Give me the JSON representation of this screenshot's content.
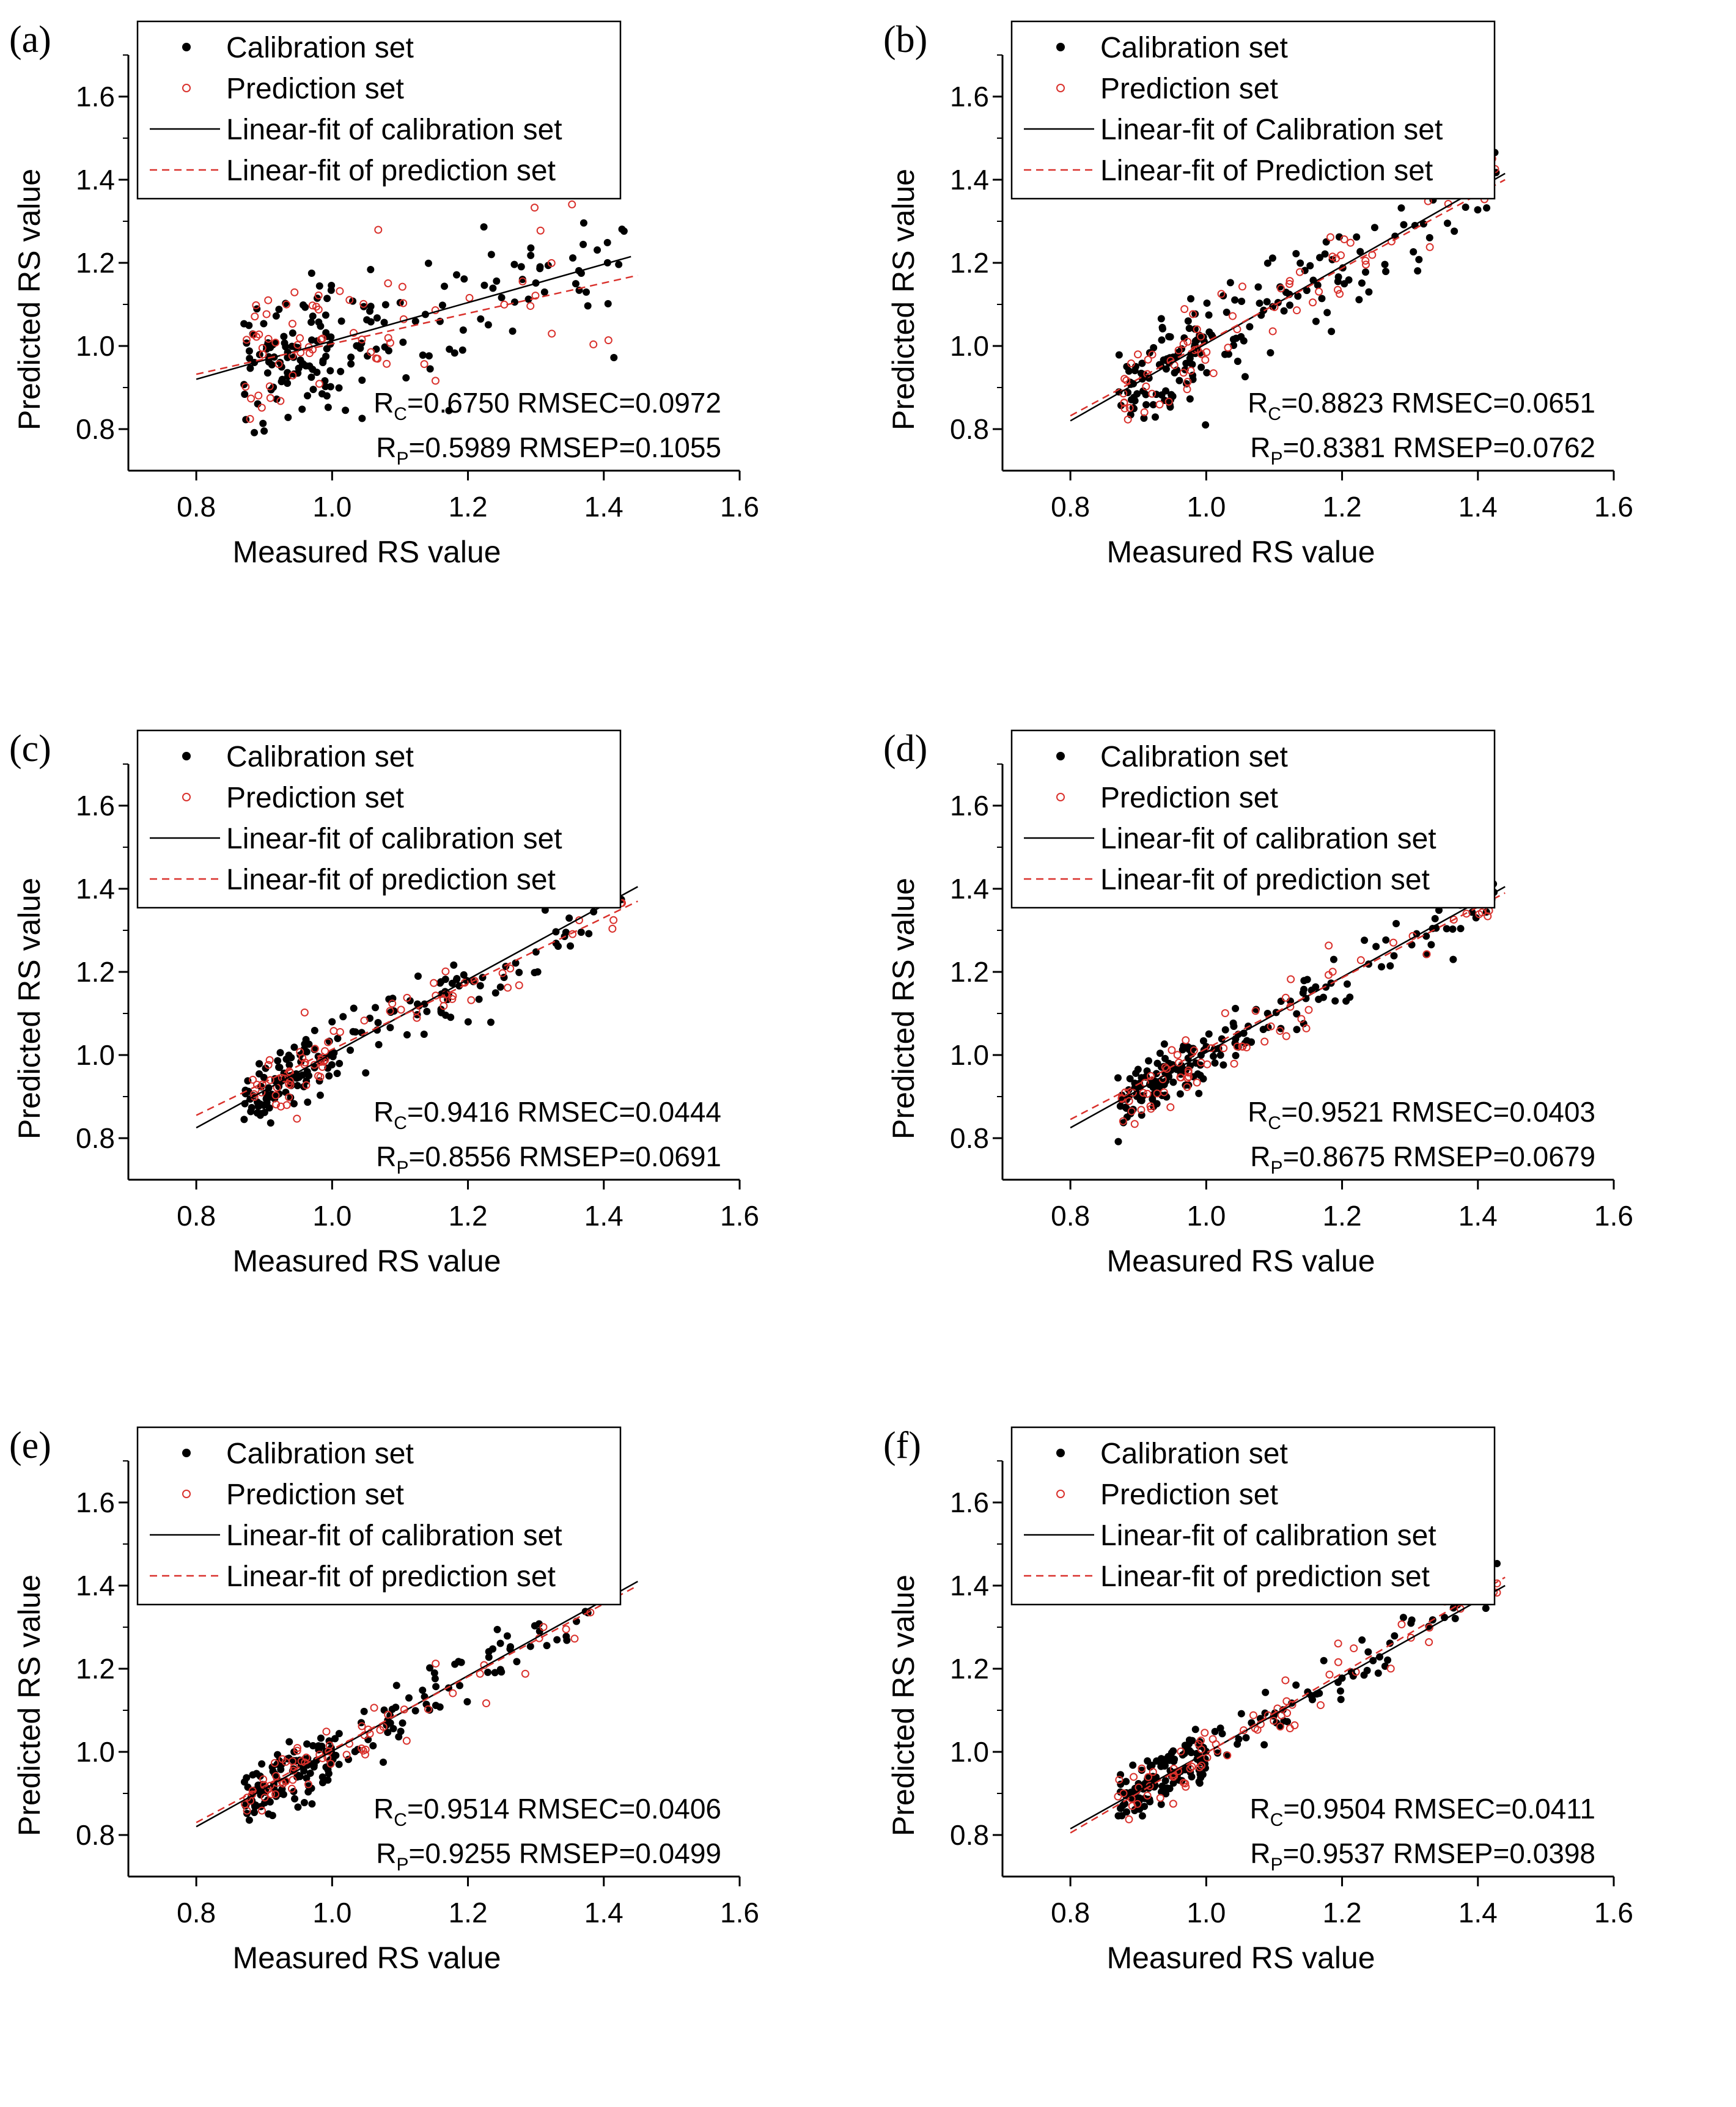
{
  "figure": {
    "colors": {
      "calibration": "#000000",
      "prediction": "#d9302b",
      "axis": "#000000"
    },
    "charts": [
      {
        "id": "a"
      },
      {
        "id": "b"
      },
      {
        "id": "c"
      },
      {
        "id": "d"
      },
      {
        "id": "e"
      },
      {
        "id": "f"
      }
    ]
  },
  "chart_data": [
    {
      "type": "scatter",
      "panel_label": "(a)",
      "xlabel": "Measured RS value",
      "ylabel": "Predicted RS value",
      "xlim": [
        0.7,
        1.6
      ],
      "ylim": [
        0.7,
        1.7
      ],
      "xticks": [
        "0.8",
        "1.0",
        "1.2",
        "1.4",
        "1.6"
      ],
      "yticks": [
        "0.8",
        "1.0",
        "1.2",
        "1.4",
        "1.6"
      ],
      "legend": [
        "Calibration set",
        "Prediction set",
        "Linear-fit of calibration set",
        "Linear-fit of prediction set"
      ],
      "legend_position": "top-left",
      "stats": {
        "rc_sub": "C",
        "rc": "=0.6750 RMSEC=0.0972",
        "rp_sub": "P",
        "rp": "=0.5989 RMSEP=0.1055"
      },
      "fit_calibration": {
        "x": [
          0.8,
          1.44
        ],
        "y": [
          0.92,
          1.215
        ]
      },
      "fit_prediction": {
        "x": [
          0.8,
          1.45
        ],
        "y": [
          0.932,
          1.17
        ]
      },
      "scatter_model": {
        "slope": 0.46,
        "intercept": 0.55,
        "spread": 0.08
      }
    },
    {
      "type": "scatter",
      "panel_label": "(b)",
      "xlabel": "Measured RS value",
      "ylabel": "Predicted RS value",
      "xlim": [
        0.7,
        1.6
      ],
      "ylim": [
        0.7,
        1.7
      ],
      "xticks": [
        "0.8",
        "1.0",
        "1.2",
        "1.4",
        "1.6"
      ],
      "yticks": [
        "0.8",
        "1.0",
        "1.2",
        "1.4",
        "1.6"
      ],
      "legend": [
        "Calibration set",
        "Prediction set",
        "Linear-fit of Calibration set",
        "Linear-fit of Prediction set"
      ],
      "legend_position": "top-left",
      "stats": {
        "rc_sub": "C",
        "rc": "=0.8823 RMSEC=0.0651",
        "rp_sub": "P",
        "rp": "=0.8381 RMSEP=0.0762"
      },
      "fit_calibration": {
        "x": [
          0.8,
          1.44
        ],
        "y": [
          0.82,
          1.415
        ]
      },
      "fit_prediction": {
        "x": [
          0.8,
          1.44
        ],
        "y": [
          0.832,
          1.4
        ]
      },
      "scatter_model": {
        "slope": 0.93,
        "intercept": 0.076,
        "spread": 0.055
      }
    },
    {
      "type": "scatter",
      "panel_label": "(c)",
      "xlabel": "Measured RS value",
      "ylabel": "Predicted RS value",
      "xlim": [
        0.7,
        1.6
      ],
      "ylim": [
        0.7,
        1.7
      ],
      "xticks": [
        "0.8",
        "1.0",
        "1.2",
        "1.4",
        "1.6"
      ],
      "yticks": [
        "0.8",
        "1.0",
        "1.2",
        "1.4",
        "1.6"
      ],
      "legend": [
        "Calibration set",
        "Prediction set",
        "Linear-fit of calibration set",
        "Linear-fit of prediction set"
      ],
      "legend_position": "top-left",
      "stats": {
        "rc_sub": "C",
        "rc": "=0.9416 RMSEC=0.0444",
        "rp_sub": "P",
        "rp": "=0.8556 RMSEP=0.0691"
      },
      "fit_calibration": {
        "x": [
          0.8,
          1.45
        ],
        "y": [
          0.825,
          1.405
        ]
      },
      "fit_prediction": {
        "x": [
          0.8,
          1.45
        ],
        "y": [
          0.855,
          1.37
        ]
      },
      "scatter_model": {
        "slope": 0.89,
        "intercept": 0.11,
        "spread": 0.04
      }
    },
    {
      "type": "scatter",
      "panel_label": "(d)",
      "xlabel": "Measured RS value",
      "ylabel": "Predicted RS value",
      "xlim": [
        0.7,
        1.6
      ],
      "ylim": [
        0.7,
        1.7
      ],
      "xticks": [
        "0.8",
        "1.0",
        "1.2",
        "1.4",
        "1.6"
      ],
      "yticks": [
        "0.8",
        "1.0",
        "1.2",
        "1.4",
        "1.6"
      ],
      "legend": [
        "Calibration set",
        "Prediction set",
        "Linear-fit of calibration set",
        "Linear-fit of prediction set"
      ],
      "legend_position": "top-left",
      "stats": {
        "rc_sub": "C",
        "rc": "=0.9521 RMSEC=0.0403",
        "rp_sub": "P",
        "rp": "=0.8675 RMSEP=0.0679"
      },
      "fit_calibration": {
        "x": [
          0.8,
          1.44
        ],
        "y": [
          0.825,
          1.405
        ]
      },
      "fit_prediction": {
        "x": [
          0.8,
          1.44
        ],
        "y": [
          0.845,
          1.39
        ]
      },
      "scatter_model": {
        "slope": 0.9,
        "intercept": 0.1,
        "spread": 0.038
      }
    },
    {
      "type": "scatter",
      "panel_label": "(e)",
      "xlabel": "Measured RS value",
      "ylabel": "Predicted RS value",
      "xlim": [
        0.7,
        1.6
      ],
      "ylim": [
        0.7,
        1.7
      ],
      "xticks": [
        "0.8",
        "1.0",
        "1.2",
        "1.4",
        "1.6"
      ],
      "yticks": [
        "0.8",
        "1.0",
        "1.2",
        "1.4",
        "1.6"
      ],
      "legend": [
        "Calibration set",
        "Prediction set",
        "Linear-fit of calibration set",
        "Linear-fit of prediction set"
      ],
      "legend_position": "top-left",
      "stats": {
        "rc_sub": "C",
        "rc": "=0.9514 RMSEC=0.0406",
        "rp_sub": "P",
        "rp": "=0.9255 RMSEP=0.0499"
      },
      "fit_calibration": {
        "x": [
          0.8,
          1.45
        ],
        "y": [
          0.82,
          1.41
        ]
      },
      "fit_prediction": {
        "x": [
          0.8,
          1.45
        ],
        "y": [
          0.83,
          1.4
        ]
      },
      "scatter_model": {
        "slope": 0.91,
        "intercept": 0.09,
        "spread": 0.035
      }
    },
    {
      "type": "scatter",
      "panel_label": "(f)",
      "xlabel": "Measured RS value",
      "ylabel": "Predicted RS value",
      "xlim": [
        0.7,
        1.6
      ],
      "ylim": [
        0.7,
        1.7
      ],
      "xticks": [
        "0.8",
        "1.0",
        "1.2",
        "1.4",
        "1.6"
      ],
      "yticks": [
        "0.8",
        "1.0",
        "1.2",
        "1.4",
        "1.6"
      ],
      "legend": [
        "Calibration set",
        "Prediction set",
        "Linear-fit of calibration set",
        "Linear-fit of prediction set"
      ],
      "legend_position": "top-left",
      "stats": {
        "rc_sub": "C",
        "rc": "=0.9504 RMSEC=0.0411",
        "rp_sub": "P",
        "rp": "=0.9537 RMSEP=0.0398"
      },
      "fit_calibration": {
        "x": [
          0.8,
          1.44
        ],
        "y": [
          0.815,
          1.4
        ]
      },
      "fit_prediction": {
        "x": [
          0.8,
          1.44
        ],
        "y": [
          0.805,
          1.42
        ]
      },
      "scatter_model": {
        "slope": 0.92,
        "intercept": 0.08,
        "spread": 0.035
      }
    }
  ]
}
